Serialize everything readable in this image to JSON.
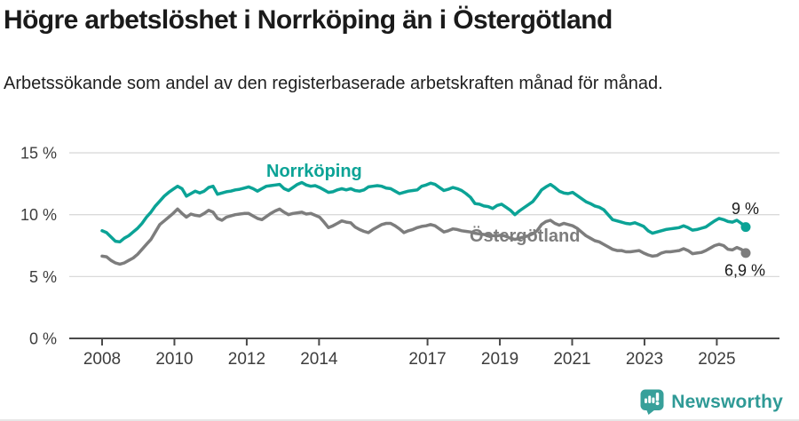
{
  "title": "Högre arbetslöshet i Norrköping än i Östergötland",
  "subtitle": "Arbetssökande som andel av den registerbaserade arbetskraften månad för månad.",
  "branding": {
    "logo_text": "Newsworthy",
    "logo_icon": "speech-bubble-bar-chart-icon",
    "brand_color": "#2f9a96"
  },
  "chart_data": {
    "type": "line",
    "title": "Högre arbetslöshet i Norrköping än i Östergötland",
    "subtitle": "Arbetssökande som andel av den registerbaserade arbetskraften månad för månad.",
    "x_first": 2008.0,
    "x_last": 2025.8,
    "x_axis_ticks": [
      2008,
      2010,
      2012,
      2014,
      2017,
      2019,
      2021,
      2023,
      2025
    ],
    "y_axis_ticks": [
      {
        "label": "15 %",
        "value": 15
      },
      {
        "label": "10 %",
        "value": 10
      },
      {
        "label": "5 %",
        "value": 5
      },
      {
        "label": "0 %",
        "value": 0
      }
    ],
    "ylim": [
      0,
      15.8
    ],
    "grid": "horizontal",
    "legend_position": "inline-labels",
    "colors": {
      "grid": "#dadada",
      "axis": "#4a4a4a",
      "tick_text": "#3d3d3d",
      "end_label_text": "#1a1a1a"
    },
    "series": [
      {
        "name": "Norrköping",
        "color": "#0ba396",
        "end_label": "9 %",
        "values": [
          8.7,
          8.55,
          8.2,
          7.85,
          7.8,
          8.1,
          8.3,
          8.6,
          8.9,
          9.3,
          9.8,
          10.2,
          10.7,
          11.1,
          11.5,
          11.8,
          12.05,
          12.3,
          12.1,
          11.5,
          11.7,
          11.9,
          11.75,
          11.9,
          12.2,
          12.3,
          11.65,
          11.75,
          11.85,
          11.9,
          12.0,
          12.05,
          12.15,
          12.25,
          12.1,
          11.9,
          12.1,
          12.3,
          12.35,
          12.4,
          12.45,
          12.1,
          11.95,
          12.2,
          12.45,
          12.6,
          12.4,
          12.3,
          12.35,
          12.2,
          12.0,
          11.8,
          11.85,
          12.0,
          12.1,
          12.0,
          12.1,
          11.95,
          11.9,
          12.0,
          12.25,
          12.3,
          12.35,
          12.3,
          12.15,
          12.1,
          11.9,
          11.7,
          11.8,
          11.9,
          11.95,
          12.0,
          12.3,
          12.4,
          12.55,
          12.45,
          12.2,
          11.95,
          12.05,
          12.2,
          12.1,
          11.95,
          11.7,
          11.4,
          10.9,
          10.85,
          10.7,
          10.65,
          10.5,
          10.75,
          10.85,
          10.6,
          10.35,
          10.0,
          10.3,
          10.55,
          10.8,
          11.05,
          11.5,
          12.0,
          12.25,
          12.45,
          12.2,
          11.9,
          11.75,
          11.7,
          11.8,
          11.55,
          11.3,
          11.05,
          10.9,
          10.7,
          10.6,
          10.4,
          10.0,
          9.6,
          9.5,
          9.4,
          9.3,
          9.25,
          9.35,
          9.2,
          9.05,
          8.7,
          8.5,
          8.6,
          8.7,
          8.8,
          8.85,
          8.9,
          8.95,
          9.1,
          8.95,
          8.75,
          8.8,
          8.9,
          9.0,
          9.25,
          9.5,
          9.7,
          9.6,
          9.45,
          9.4,
          9.55,
          9.3,
          9.0
        ]
      },
      {
        "name": "Östergötland",
        "color": "#7d7d7d",
        "end_label": "6,9 %",
        "values": [
          6.65,
          6.6,
          6.3,
          6.1,
          6.0,
          6.1,
          6.3,
          6.5,
          6.8,
          7.2,
          7.6,
          8.0,
          8.6,
          9.2,
          9.5,
          9.8,
          10.1,
          10.45,
          10.1,
          9.8,
          10.05,
          9.95,
          9.9,
          10.1,
          10.35,
          10.2,
          9.7,
          9.55,
          9.8,
          9.9,
          10.0,
          10.05,
          10.1,
          10.1,
          9.9,
          9.7,
          9.6,
          9.85,
          10.1,
          10.3,
          10.45,
          10.2,
          10.0,
          10.1,
          10.15,
          10.2,
          10.05,
          10.1,
          9.95,
          9.8,
          9.4,
          8.95,
          9.1,
          9.3,
          9.5,
          9.4,
          9.35,
          9.0,
          8.8,
          8.65,
          8.55,
          8.8,
          9.0,
          9.2,
          9.3,
          9.3,
          9.1,
          8.85,
          8.55,
          8.7,
          8.8,
          8.95,
          9.05,
          9.1,
          9.2,
          9.1,
          8.85,
          8.6,
          8.7,
          8.85,
          8.8,
          8.7,
          8.65,
          8.6,
          8.5,
          8.45,
          8.4,
          8.35,
          8.3,
          8.3,
          8.35,
          8.25,
          8.1,
          8.0,
          8.1,
          8.2,
          8.3,
          8.45,
          8.7,
          9.2,
          9.45,
          9.55,
          9.3,
          9.15,
          9.3,
          9.2,
          9.1,
          8.9,
          8.6,
          8.3,
          8.1,
          7.9,
          7.8,
          7.6,
          7.4,
          7.2,
          7.1,
          7.1,
          7.0,
          7.0,
          7.05,
          7.1,
          6.9,
          6.75,
          6.65,
          6.7,
          6.9,
          7.0,
          7.0,
          7.05,
          7.1,
          7.25,
          7.1,
          6.85,
          6.9,
          6.95,
          7.1,
          7.3,
          7.5,
          7.6,
          7.5,
          7.2,
          7.15,
          7.35,
          7.2,
          6.9
        ]
      }
    ]
  }
}
